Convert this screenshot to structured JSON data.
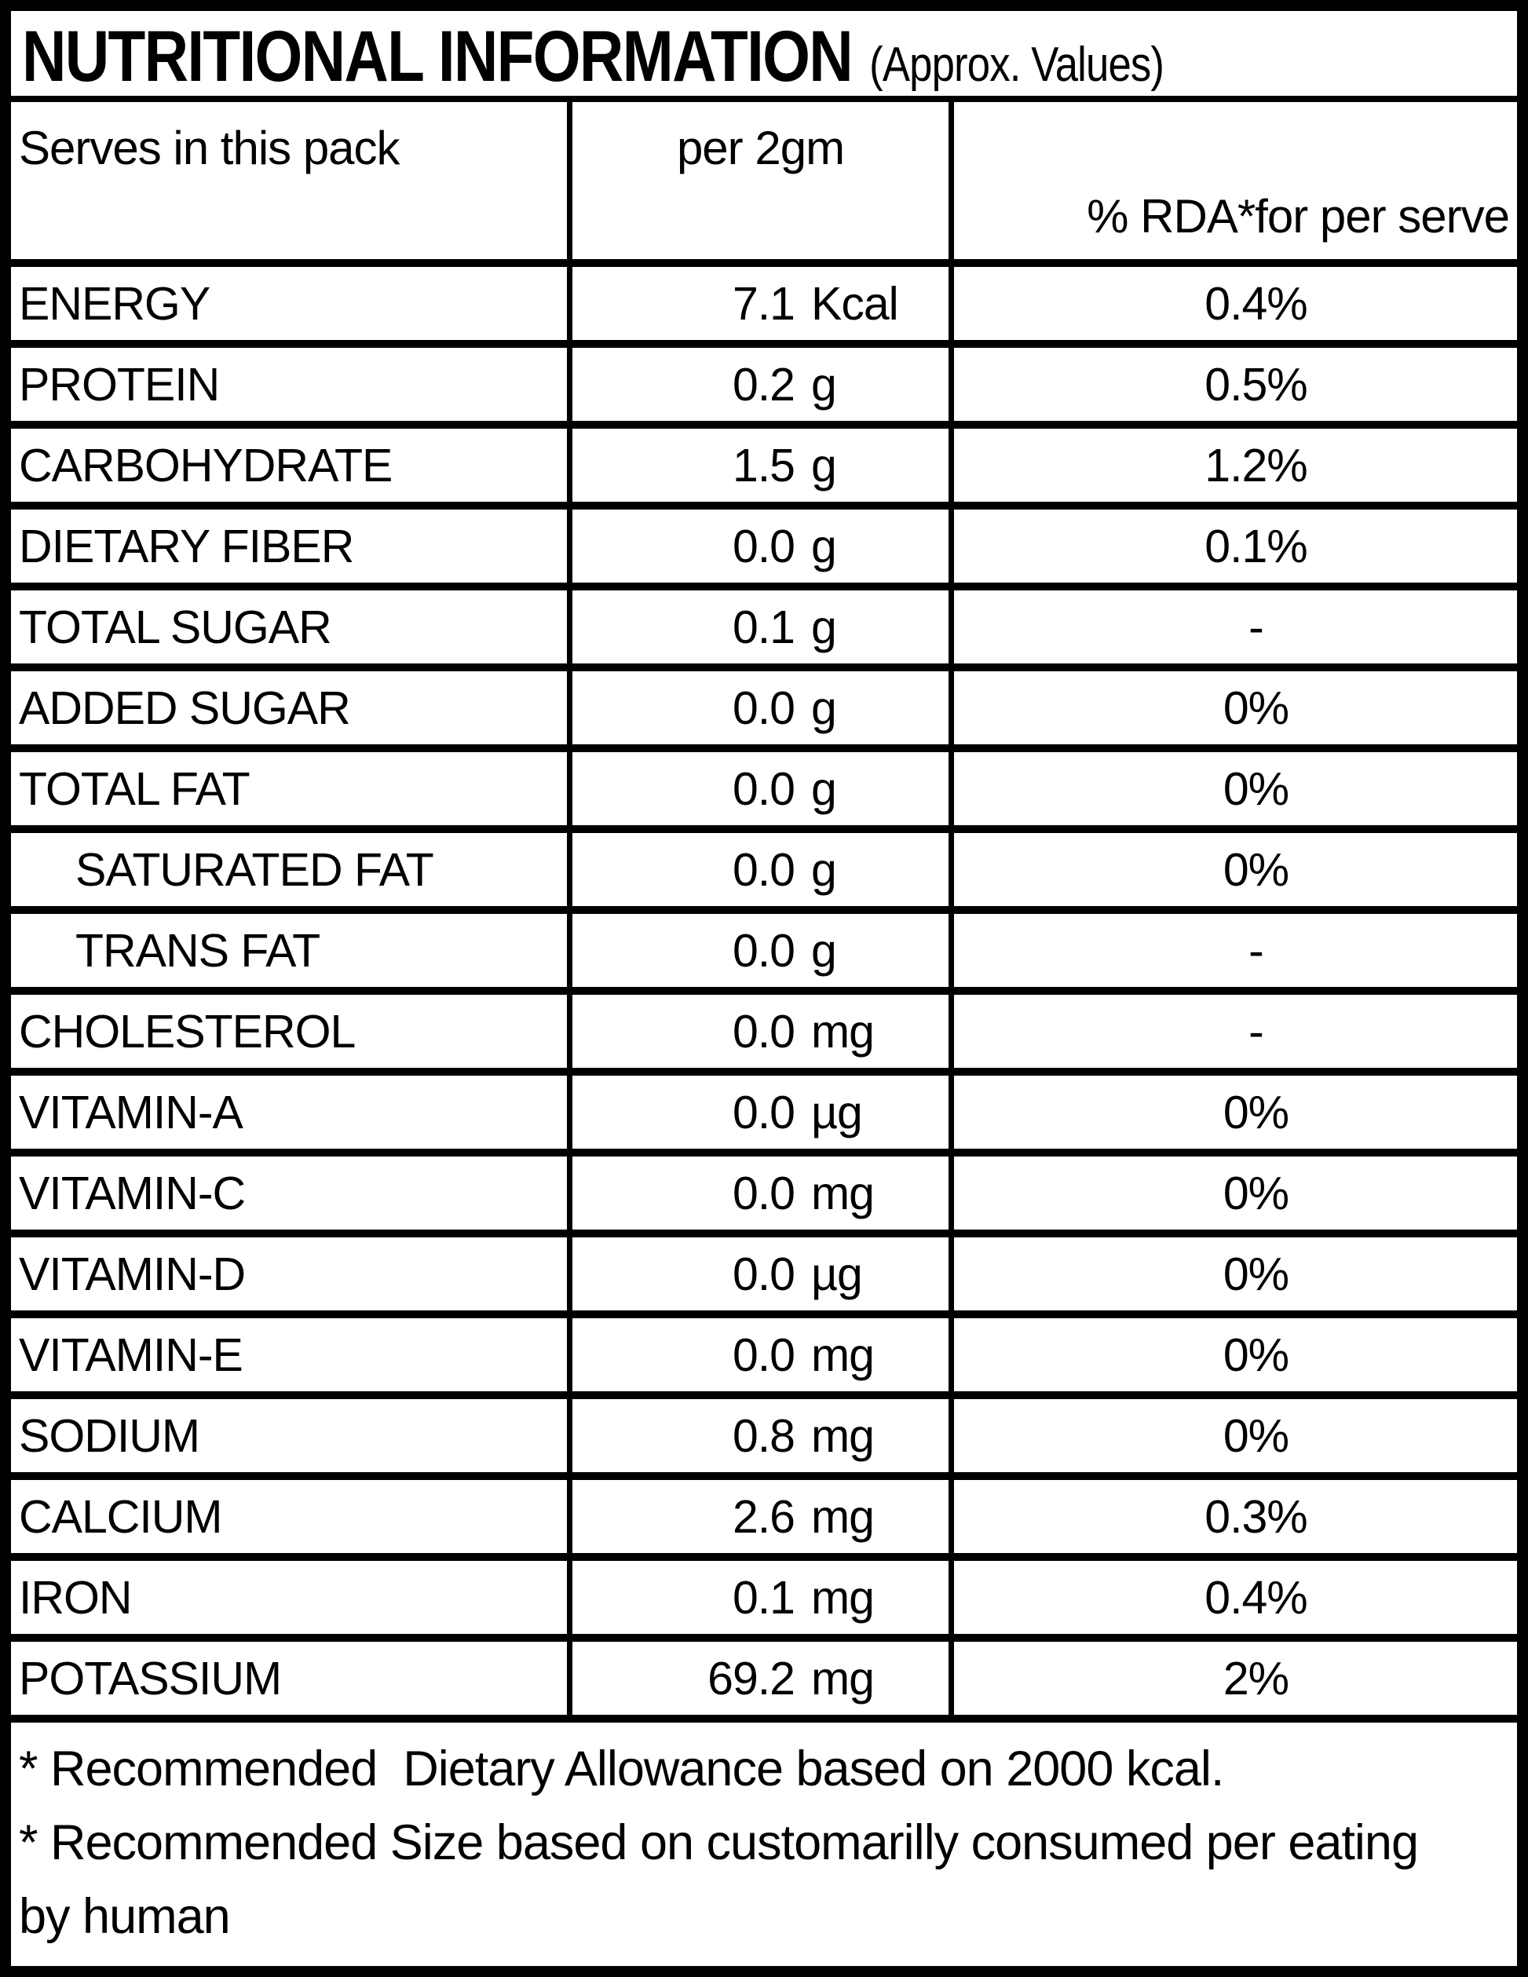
{
  "label": {
    "title": "NUTRITIONAL INFORMATION",
    "title_suffix": "(Approx. Values)"
  },
  "table": {
    "header": {
      "serves": "Serves in this pack",
      "per_serve": "per 2gm",
      "rda": "% RDA*for per serve"
    },
    "rows": [
      {
        "label": "ENERGY",
        "value": "7.1",
        "unit": "Kcal",
        "rda": "0.4%",
        "indent": false
      },
      {
        "label": "PROTEIN",
        "value": "0.2",
        "unit": "g",
        "rda": "0.5%",
        "indent": false
      },
      {
        "label": "CARBOHYDRATE",
        "value": "1.5",
        "unit": "g",
        "rda": "1.2%",
        "indent": false
      },
      {
        "label": "DIETARY FIBER",
        "value": "0.0",
        "unit": "g",
        "rda": "0.1%",
        "indent": false
      },
      {
        "label": "TOTAL SUGAR",
        "value": "0.1",
        "unit": "g",
        "rda": "-",
        "indent": false
      },
      {
        "label": "ADDED SUGAR",
        "value": "0.0",
        "unit": "g",
        "rda": "0%",
        "indent": false
      },
      {
        "label": "TOTAL FAT",
        "value": "0.0",
        "unit": "g",
        "rda": "0%",
        "indent": false
      },
      {
        "label": "SATURATED FAT",
        "value": "0.0",
        "unit": "g",
        "rda": "0%",
        "indent": true
      },
      {
        "label": "TRANS FAT",
        "value": "0.0",
        "unit": "g",
        "rda": "-",
        "indent": true
      },
      {
        "label": "CHOLESTEROL",
        "value": "0.0",
        "unit": "mg",
        "rda": "-",
        "indent": false
      },
      {
        "label": "VITAMIN-A",
        "value": "0.0",
        "unit": "µg",
        "rda": "0%",
        "indent": false
      },
      {
        "label": "VITAMIN-C",
        "value": "0.0",
        "unit": "mg",
        "rda": "0%",
        "indent": false
      },
      {
        "label": "VITAMIN-D",
        "value": "0.0",
        "unit": "µg",
        "rda": "0%",
        "indent": false
      },
      {
        "label": "VITAMIN-E",
        "value": "0.0",
        "unit": "mg",
        "rda": "0%",
        "indent": false
      },
      {
        "label": "SODIUM",
        "value": "0.8",
        "unit": "mg",
        "rda": "0%",
        "indent": false
      },
      {
        "label": "CALCIUM",
        "value": "2.6",
        "unit": "mg",
        "rda": "0.3%",
        "indent": false
      },
      {
        "label": "IRON",
        "value": "0.1",
        "unit": "mg",
        "rda": "0.4%",
        "indent": false
      },
      {
        "label": "POTASSIUM",
        "value": "69.2",
        "unit": "mg",
        "rda": "2%",
        "indent": false
      }
    ],
    "footnote_lines": [
      "* Recommended  Dietary Allowance based on 2000 kcal.",
      "* Recommended Size based on customarilly consumed per eating",
      "by human"
    ]
  },
  "colors": {
    "border": "#000000",
    "background": "#ffffff",
    "text": "#000000"
  }
}
